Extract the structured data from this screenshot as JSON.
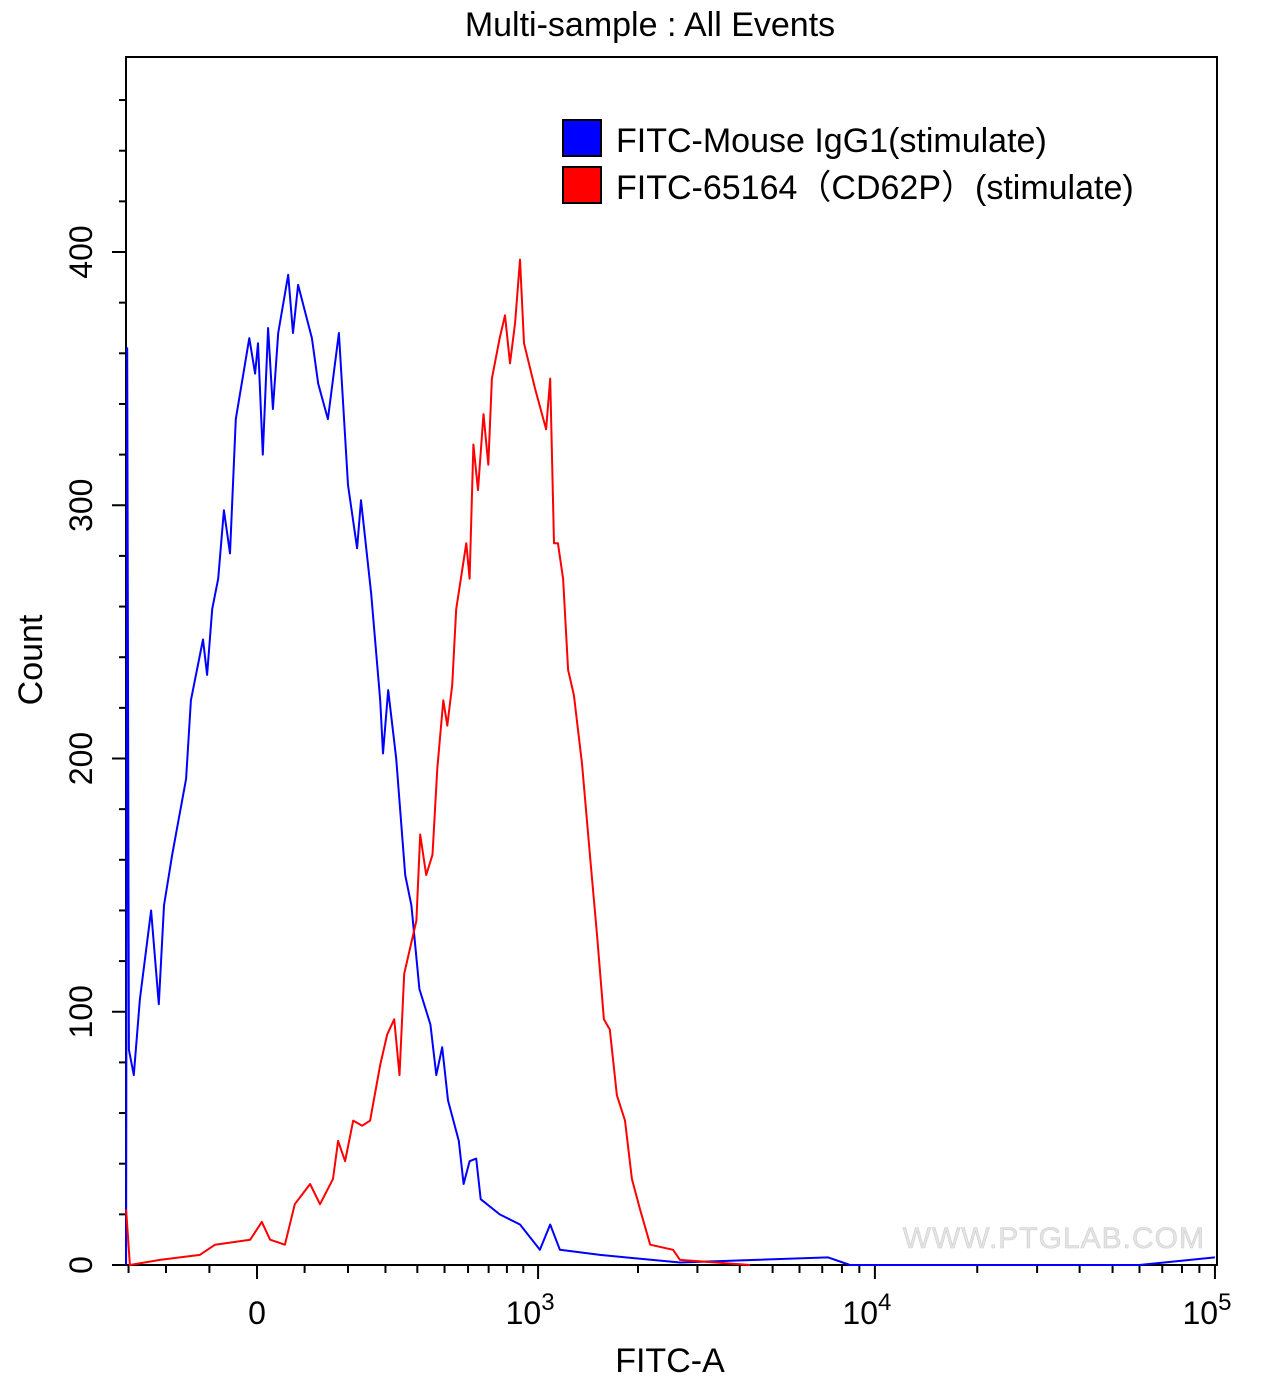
{
  "chart_data": {
    "type": "line",
    "title": "Multi-sample : All Events",
    "xlabel": "FITC-A",
    "ylabel": "Count",
    "x_scale": "biexponential",
    "xlim": [
      -307,
      100000
    ],
    "ylim": [
      0,
      477
    ],
    "x_ticks": [
      {
        "value": 0,
        "label": "0",
        "sup": ""
      },
      {
        "value": 1000,
        "label": "10",
        "sup": "3"
      },
      {
        "value": 10000,
        "label": "10",
        "sup": "4"
      },
      {
        "value": 100000,
        "label": "10",
        "sup": "5"
      }
    ],
    "x_minor_ticks": [
      -300,
      -200,
      -100,
      100,
      200,
      300,
      400,
      500,
      600,
      700,
      800,
      900,
      2000,
      3000,
      4000,
      5000,
      6000,
      7000,
      8000,
      9000,
      20000,
      30000,
      40000,
      50000,
      60000,
      70000,
      80000,
      90000
    ],
    "y_ticks": [
      0,
      100,
      200,
      300,
      400
    ],
    "y_minor_ticks": [
      20,
      40,
      60,
      80,
      120,
      140,
      160,
      180,
      220,
      240,
      260,
      280,
      320,
      340,
      360,
      380,
      420,
      440,
      460
    ],
    "legend_position": "top-right",
    "watermark": "WWW.PTGLAB.COM",
    "series": [
      {
        "name": "FITC-Mouse IgG1(stimulate)",
        "color": "#0000ff",
        "points": [
          [
            -307,
            0
          ],
          [
            -304,
            362
          ],
          [
            -299,
            85
          ],
          [
            -285,
            75
          ],
          [
            -268,
            105
          ],
          [
            -238,
            140
          ],
          [
            -218,
            103
          ],
          [
            -205,
            142
          ],
          [
            -185,
            162
          ],
          [
            -152,
            192
          ],
          [
            -141,
            223
          ],
          [
            -114,
            247
          ],
          [
            -105,
            233
          ],
          [
            -94,
            259
          ],
          [
            -81,
            271
          ],
          [
            -69,
            298
          ],
          [
            -56,
            281
          ],
          [
            -44,
            334
          ],
          [
            -16,
            366
          ],
          [
            -4,
            352
          ],
          [
            2,
            364
          ],
          [
            12,
            320
          ],
          [
            23,
            370
          ],
          [
            33,
            338
          ],
          [
            44,
            368
          ],
          [
            65,
            391
          ],
          [
            75,
            368
          ],
          [
            86,
            387
          ],
          [
            116,
            366
          ],
          [
            130,
            348
          ],
          [
            152,
            334
          ],
          [
            178,
            368
          ],
          [
            200,
            308
          ],
          [
            223,
            283
          ],
          [
            233,
            302
          ],
          [
            260,
            265
          ],
          [
            285,
            223
          ],
          [
            293,
            202
          ],
          [
            308,
            227
          ],
          [
            332,
            200
          ],
          [
            360,
            154
          ],
          [
            380,
            142
          ],
          [
            407,
            109
          ],
          [
            446,
            95
          ],
          [
            468,
            75
          ],
          [
            491,
            86
          ],
          [
            514,
            65
          ],
          [
            559,
            49
          ],
          [
            580,
            32
          ],
          [
            607,
            41
          ],
          [
            638,
            42
          ],
          [
            660,
            26
          ],
          [
            759,
            20
          ],
          [
            879,
            16
          ],
          [
            1013,
            6
          ],
          [
            1089,
            16
          ],
          [
            1166,
            6
          ],
          [
            1540,
            4
          ],
          [
            2665,
            1
          ],
          [
            7290,
            3
          ],
          [
            8450,
            0
          ],
          [
            60000,
            0
          ],
          [
            100000,
            3
          ]
        ]
      },
      {
        "name": "FITC-65164（CD62P）(stimulate)",
        "color": "#ff0000",
        "points": [
          [
            -307,
            22
          ],
          [
            -296,
            0
          ],
          [
            -215,
            2
          ],
          [
            -121,
            4
          ],
          [
            -88,
            8
          ],
          [
            -14,
            10
          ],
          [
            10,
            17
          ],
          [
            27,
            10
          ],
          [
            58,
            8
          ],
          [
            79,
            24
          ],
          [
            112,
            32
          ],
          [
            134,
            24
          ],
          [
            164,
            34
          ],
          [
            176,
            49
          ],
          [
            193,
            41
          ],
          [
            213,
            57
          ],
          [
            236,
            55
          ],
          [
            257,
            57
          ],
          [
            285,
            79
          ],
          [
            305,
            91
          ],
          [
            326,
            97
          ],
          [
            342,
            75
          ],
          [
            357,
            115
          ],
          [
            397,
            136
          ],
          [
            410,
            170
          ],
          [
            431,
            154
          ],
          [
            454,
            162
          ],
          [
            472,
            196
          ],
          [
            495,
            223
          ],
          [
            511,
            213
          ],
          [
            531,
            229
          ],
          [
            548,
            259
          ],
          [
            592,
            285
          ],
          [
            607,
            271
          ],
          [
            625,
            324
          ],
          [
            647,
            306
          ],
          [
            674,
            336
          ],
          [
            698,
            316
          ],
          [
            717,
            350
          ],
          [
            759,
            366
          ],
          [
            789,
            375
          ],
          [
            818,
            356
          ],
          [
            849,
            372
          ],
          [
            879,
            397
          ],
          [
            905,
            364
          ],
          [
            979,
            346
          ],
          [
            1058,
            330
          ],
          [
            1089,
            350
          ],
          [
            1119,
            285
          ],
          [
            1150,
            285
          ],
          [
            1192,
            271
          ],
          [
            1235,
            235
          ],
          [
            1286,
            225
          ],
          [
            1360,
            198
          ],
          [
            1437,
            162
          ],
          [
            1510,
            130
          ],
          [
            1582,
            97
          ],
          [
            1648,
            93
          ],
          [
            1731,
            67
          ],
          [
            1830,
            57
          ],
          [
            1918,
            34
          ],
          [
            2027,
            22
          ],
          [
            2174,
            8
          ],
          [
            2543,
            6
          ],
          [
            2665,
            2
          ],
          [
            4290,
            0
          ]
        ]
      }
    ]
  }
}
